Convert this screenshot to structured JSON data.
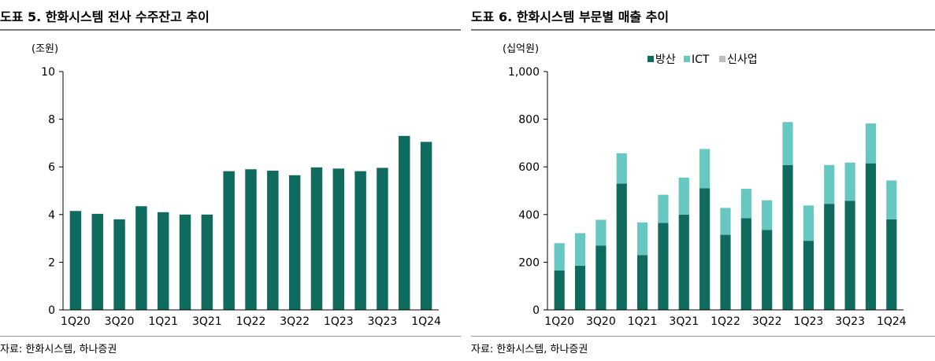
{
  "chart_data": [
    {
      "type": "bar",
      "title": "도표 5. 한화시스템 전사 수주잔고 추이",
      "unit": "(조원)",
      "xlabel": "",
      "ylabel": "",
      "ylim": [
        0,
        10
      ],
      "yticks": [
        "0",
        "2",
        "4",
        "6",
        "8",
        "10"
      ],
      "ytick_values": [
        0,
        2,
        4,
        6,
        8,
        10
      ],
      "categories": [
        "1Q20",
        "2Q20",
        "3Q20",
        "4Q20",
        "1Q21",
        "2Q21",
        "3Q21",
        "4Q21",
        "1Q22",
        "2Q22",
        "3Q22",
        "4Q22",
        "1Q23",
        "2Q23",
        "3Q23",
        "4Q23",
        "1Q24"
      ],
      "visible_xticks": [
        "1Q20",
        "",
        "3Q20",
        "",
        "1Q21",
        "",
        "3Q21",
        "",
        "1Q22",
        "",
        "3Q22",
        "",
        "1Q23",
        "",
        "3Q23",
        "",
        "1Q24"
      ],
      "values": [
        4.15,
        4.03,
        3.8,
        4.35,
        4.1,
        4.0,
        4.0,
        5.82,
        5.9,
        5.84,
        5.65,
        5.98,
        5.93,
        5.82,
        5.96,
        7.3,
        7.05
      ],
      "color": "#0f6b5e",
      "source": "자료: 한화시스템, 하나증권"
    },
    {
      "type": "bar",
      "stacked": true,
      "title": "도표 6. 한화시스템 부문별 매출 추이",
      "unit": "(십억원)",
      "xlabel": "",
      "ylabel": "",
      "ylim": [
        0,
        1000
      ],
      "yticks": [
        "0",
        "200",
        "400",
        "600",
        "800",
        "1,000"
      ],
      "ytick_values": [
        0,
        200,
        400,
        600,
        800,
        1000
      ],
      "legend_position": "top",
      "categories": [
        "1Q20",
        "2Q20",
        "3Q20",
        "4Q20",
        "1Q21",
        "2Q21",
        "3Q21",
        "4Q21",
        "1Q22",
        "2Q22",
        "3Q22",
        "4Q22",
        "1Q23",
        "2Q23",
        "3Q23",
        "4Q23",
        "1Q24"
      ],
      "visible_xticks": [
        "1Q20",
        "",
        "3Q20",
        "",
        "1Q21",
        "",
        "3Q21",
        "",
        "1Q22",
        "",
        "3Q22",
        "",
        "1Q23",
        "",
        "3Q23",
        "",
        "1Q24"
      ],
      "series": [
        {
          "name": "방산",
          "color": "#0f6b5e",
          "values": [
            165,
            185,
            270,
            530,
            230,
            365,
            400,
            510,
            315,
            385,
            335,
            608,
            290,
            445,
            458,
            615,
            380
          ]
        },
        {
          "name": "ICT",
          "color": "#66c8c0",
          "values": [
            115,
            137,
            108,
            127,
            137,
            118,
            155,
            165,
            113,
            123,
            125,
            180,
            148,
            163,
            160,
            167,
            163
          ]
        },
        {
          "name": "신사업",
          "color": "#bdbdbd",
          "values": [
            0,
            0,
            0,
            0,
            0,
            0,
            0,
            0,
            0,
            0,
            0,
            0,
            0,
            0,
            0,
            0,
            0
          ]
        }
      ],
      "source": "자료: 한화시스템, 하나증권"
    }
  ]
}
